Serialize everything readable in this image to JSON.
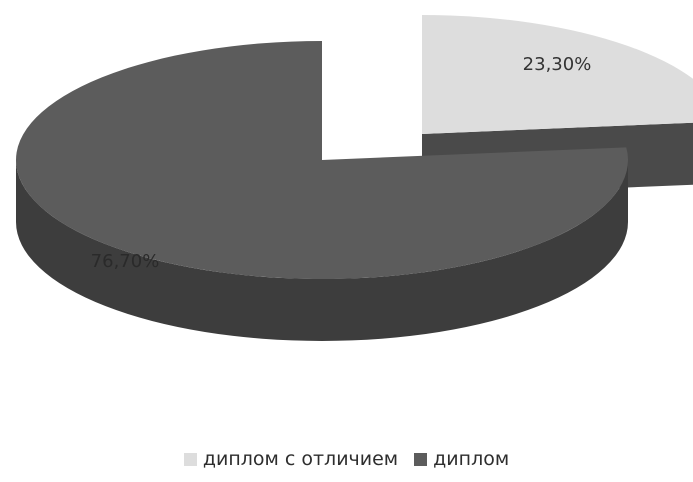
{
  "chart_data": {
    "type": "pie",
    "style": "3d-exploded",
    "slices": [
      {
        "name": "диплом с отличием",
        "value": 23.3,
        "label": "23,30%",
        "color": "#dddddd",
        "side_color": "#535353",
        "exploded": true
      },
      {
        "name": "диплом",
        "value": 76.7,
        "label": "76,70%",
        "color": "#5c5c5c",
        "side_color": "#3d3d3d",
        "exploded": false
      }
    ],
    "legend": {
      "position": "bottom",
      "items": [
        {
          "label": "диплом с отличием",
          "color": "#dddddd"
        },
        {
          "label": "диплом",
          "color": "#5c5c5c"
        }
      ]
    }
  }
}
